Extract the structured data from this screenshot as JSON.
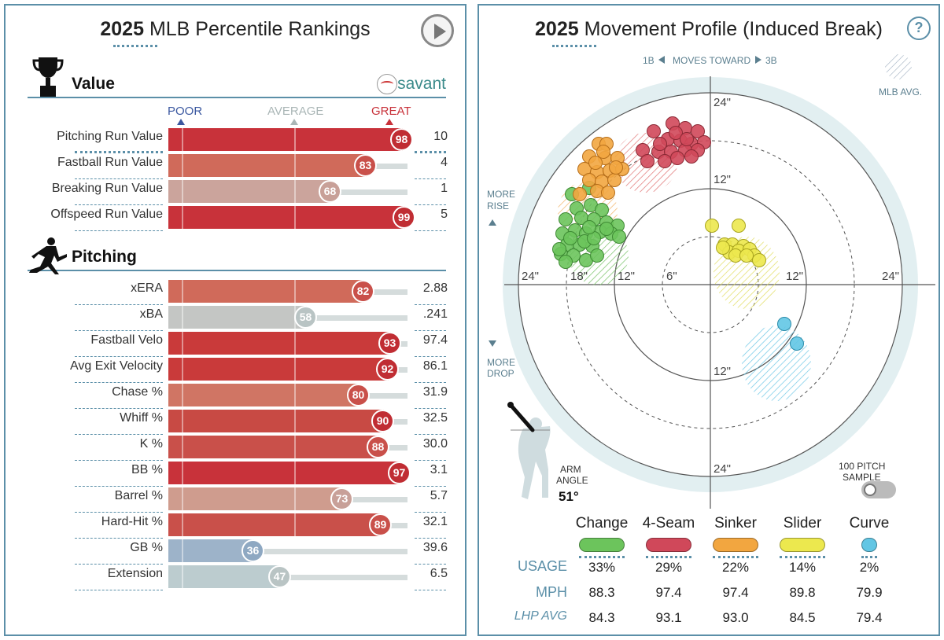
{
  "left": {
    "title_year": "2025",
    "title_rest": "MLB Percentile Rankings",
    "value_section": "Value",
    "brand": "savant",
    "scale": {
      "poor": "POOR",
      "average": "AVERAGE",
      "great": "GREAT"
    },
    "pitching_section": "Pitching",
    "value_rows": [
      {
        "label": "Pitching Run Value",
        "pct": 98,
        "value": "10",
        "color": "#c8323a"
      },
      {
        "label": "Fastball Run Value",
        "pct": 83,
        "value": "4",
        "color": "#d06a5a"
      },
      {
        "label": "Breaking Run Value",
        "pct": 68,
        "value": "1",
        "color": "#cba49c"
      },
      {
        "label": "Offspeed Run Value",
        "pct": 99,
        "value": "5",
        "color": "#c8323a"
      }
    ],
    "pitching_rows": [
      {
        "label": "xERA",
        "pct": 82,
        "value": "2.88",
        "color": "#d06a5a"
      },
      {
        "label": "xBA",
        "pct": 58,
        "value": ".241",
        "color": "#c4c6c4"
      },
      {
        "label": "Fastball Velo",
        "pct": 93,
        "value": "97.4",
        "color": "#c93a3a"
      },
      {
        "label": "Avg Exit Velocity",
        "pct": 92,
        "value": "86.1",
        "color": "#c93a3a"
      },
      {
        "label": "Chase %",
        "pct": 80,
        "value": "31.9",
        "color": "#d07564"
      },
      {
        "label": "Whiff %",
        "pct": 90,
        "value": "32.5",
        "color": "#c84a44"
      },
      {
        "label": "K %",
        "pct": 88,
        "value": "30.0",
        "color": "#c9504a"
      },
      {
        "label": "BB %",
        "pct": 97,
        "value": "3.1",
        "color": "#c8323a"
      },
      {
        "label": "Barrel %",
        "pct": 73,
        "value": "5.7",
        "color": "#cf9c8e"
      },
      {
        "label": "Hard-Hit %",
        "pct": 89,
        "value": "32.1",
        "color": "#c9504a"
      },
      {
        "label": "GB %",
        "pct": 36,
        "value": "39.6",
        "color": "#9db3c9"
      },
      {
        "label": "Extension",
        "pct": 47,
        "value": "6.5",
        "color": "#bccccf"
      }
    ]
  },
  "right": {
    "title_year": "2025",
    "title_rest": "Movement Profile (Induced Break)",
    "help": "?",
    "moves_toward": {
      "left": "1B",
      "mid": "MOVES TOWARD",
      "right": "3B"
    },
    "mlb_avg": "MLB AVG.",
    "more_rise": [
      "MORE",
      "RISE"
    ],
    "more_drop": [
      "MORE",
      "DROP"
    ],
    "ring_labels": {
      "top24": "24\"",
      "top12": "12\"",
      "bottom12": "12\"",
      "bottom24": "24\"",
      "left24": "24\"",
      "left18": "18\"",
      "left12": "12\"",
      "left6": "6\"",
      "right12": "12\"",
      "right24": "24\""
    },
    "arm_angle_label": [
      "ARM",
      "ANGLE"
    ],
    "arm_angle": "51°",
    "sample_label": [
      "100 PITCH",
      "SAMPLE"
    ],
    "pitches": [
      {
        "name": "Change",
        "color": "#6cc45c",
        "usage": "33%",
        "mph": "88.3",
        "lhp": "84.3"
      },
      {
        "name": "4-Seam",
        "color": "#d0485a",
        "usage": "29%",
        "mph": "97.4",
        "lhp": "93.1"
      },
      {
        "name": "Sinker",
        "color": "#f2a640",
        "usage": "22%",
        "mph": "97.4",
        "lhp": "93.0"
      },
      {
        "name": "Slider",
        "color": "#ece84e",
        "usage": "14%",
        "mph": "89.8",
        "lhp": "84.5"
      },
      {
        "name": "Curve",
        "color": "#62c6e4",
        "usage": "2%",
        "mph": "79.9",
        "lhp": "79.4"
      }
    ],
    "row_usage": "USAGE",
    "row_mph": "MPH",
    "row_lhp": "LHP AVG"
  }
}
